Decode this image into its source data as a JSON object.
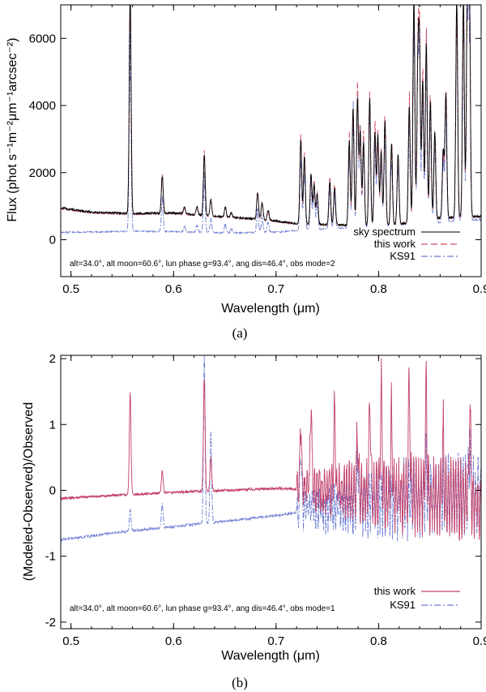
{
  "chart_data": [
    {
      "type": "line",
      "panel_caption": "(a)",
      "xlabel": "Wavelength (μm)",
      "ylabel": "Flux (phot s⁻¹m⁻²μm⁻¹arcsec⁻²)",
      "xlim": [
        0.49,
        0.9
      ],
      "ylim": [
        -1100,
        7000
      ],
      "xticks": [
        0.5,
        0.6,
        0.7,
        0.8,
        0.9
      ],
      "xtick_labels": [
        "0.5",
        "0.6",
        "0.7",
        "0.8",
        "0.9"
      ],
      "yticks": [
        0,
        2000,
        4000,
        6000
      ],
      "ytick_labels": [
        "0",
        "2000",
        "4000",
        "6000"
      ],
      "annotation": "alt=34.0°, alt moon=60.6°, lun phase g=93.4°, ang dis=46.4°, obs mode=2",
      "legend_position": "bottom-right",
      "series": [
        {
          "name": "sky spectrum",
          "color": "#000000",
          "dash": "solid",
          "continuum": [
            [
              0.49,
              950
            ],
            [
              0.52,
              820
            ],
            [
              0.56,
              780
            ],
            [
              0.6,
              800
            ],
            [
              0.64,
              700
            ],
            [
              0.68,
              620
            ],
            [
              0.7,
              560
            ],
            [
              0.72,
              480
            ],
            [
              0.75,
              450
            ],
            [
              0.8,
              420
            ],
            [
              0.83,
              500
            ],
            [
              0.86,
              650
            ],
            [
              0.9,
              700
            ]
          ],
          "emission_lines": [
            [
              0.5577,
              6700
            ],
            [
              0.589,
              1100
            ],
            [
              0.6106,
              200
            ],
            [
              0.6229,
              250
            ],
            [
              0.63,
              1800
            ],
            [
              0.6364,
              500
            ],
            [
              0.6505,
              300
            ],
            [
              0.6563,
              150
            ],
            [
              0.682,
              800
            ],
            [
              0.6864,
              500
            ],
            [
              0.6923,
              300
            ],
            [
              0.7241,
              2500
            ],
            [
              0.7276,
              2000
            ],
            [
              0.7341,
              1500
            ],
            [
              0.7371,
              1200
            ],
            [
              0.7401,
              900
            ],
            [
              0.7524,
              1300
            ],
            [
              0.7571,
              1100
            ],
            [
              0.7714,
              2500
            ],
            [
              0.7751,
              3500
            ],
            [
              0.7794,
              3800
            ],
            [
              0.7821,
              2800
            ],
            [
              0.7853,
              2500
            ],
            [
              0.7913,
              3800
            ],
            [
              0.7964,
              2800
            ],
            [
              0.7993,
              2700
            ],
            [
              0.8025,
              2200
            ],
            [
              0.8062,
              3100
            ],
            [
              0.8126,
              2400
            ],
            [
              0.819,
              2100
            ],
            [
              0.8299,
              3500
            ],
            [
              0.8344,
              6700
            ],
            [
              0.8382,
              4300
            ],
            [
              0.8399,
              5000
            ],
            [
              0.843,
              4200
            ],
            [
              0.8465,
              5300
            ],
            [
              0.8505,
              3500
            ],
            [
              0.8548,
              2600
            ],
            [
              0.863,
              2000
            ],
            [
              0.8656,
              3700
            ],
            [
              0.8762,
              6500
            ],
            [
              0.8827,
              6500
            ],
            [
              0.8865,
              6500
            ],
            [
              0.8886,
              6500
            ]
          ]
        },
        {
          "name": "this work",
          "color": "#d24a5f",
          "dash": "long-dash"
        },
        {
          "name": "KS91",
          "color": "#6a7ad0",
          "dash": "dash-dot"
        }
      ]
    },
    {
      "type": "line",
      "panel_caption": "(b)",
      "xlabel": "Wavelength (μm)",
      "ylabel": "(Modeled-Observed)/Observed",
      "xlim": [
        0.49,
        0.9
      ],
      "ylim": [
        -2.1,
        2.05
      ],
      "xticks": [
        0.5,
        0.6,
        0.7,
        0.8,
        0.9
      ],
      "xtick_labels": [
        "0.5",
        "0.6",
        "0.7",
        "0.8",
        "0.9"
      ],
      "yticks": [
        -2,
        -1,
        0,
        1,
        2
      ],
      "ytick_labels": [
        "-2",
        "-1",
        "0",
        "1",
        "2"
      ],
      "annotation": "alt=34.0°, alt moon=60.6°, lun phase g=93.4°, ang dis=46.4°, obs mode=1",
      "legend_position": "bottom-right",
      "series": [
        {
          "name": "this work",
          "color": "#c2406a",
          "dash": "solid",
          "baseline": [
            [
              0.49,
              -0.12
            ],
            [
              0.55,
              -0.07
            ],
            [
              0.6,
              -0.03
            ],
            [
              0.65,
              0.0
            ],
            [
              0.7,
              0.03
            ],
            [
              0.75,
              0.0
            ],
            [
              0.8,
              -0.05
            ],
            [
              0.85,
              -0.1
            ],
            [
              0.9,
              -0.15
            ]
          ],
          "spikes": [
            [
              0.5577,
              1.5
            ],
            [
              0.589,
              0.3
            ],
            [
              0.63,
              1.7
            ],
            [
              0.6364,
              0.5
            ],
            [
              0.7241,
              1.0
            ],
            [
              0.7341,
              1.3
            ],
            [
              0.7571,
              1.2
            ],
            [
              0.7794,
              0.9
            ],
            [
              0.7913,
              1.4
            ],
            [
              0.8025,
              1.6
            ],
            [
              0.8126,
              1.1
            ],
            [
              0.8299,
              1.5
            ],
            [
              0.8465,
              1.4
            ],
            [
              0.8628,
              0.9
            ],
            [
              0.889,
              1.2
            ]
          ]
        },
        {
          "name": "KS91",
          "color": "#6a7ad0",
          "dash": "dash-dot",
          "baseline": [
            [
              0.49,
              -0.75
            ],
            [
              0.55,
              -0.63
            ],
            [
              0.6,
              -0.55
            ],
            [
              0.65,
              -0.47
            ],
            [
              0.7,
              -0.38
            ],
            [
              0.75,
              -0.28
            ],
            [
              0.8,
              -0.18
            ],
            [
              0.85,
              -0.1
            ],
            [
              0.9,
              -0.05
            ]
          ],
          "spikes": [
            [
              0.5577,
              -0.3
            ],
            [
              0.589,
              -0.2
            ],
            [
              0.63,
              2.05
            ],
            [
              0.6364,
              0.9
            ],
            [
              0.7241,
              0.7
            ],
            [
              0.7794,
              0.4
            ],
            [
              0.8344,
              0.2
            ],
            [
              0.8465,
              0.3
            ],
            [
              0.889,
              0.6
            ]
          ]
        }
      ]
    }
  ]
}
